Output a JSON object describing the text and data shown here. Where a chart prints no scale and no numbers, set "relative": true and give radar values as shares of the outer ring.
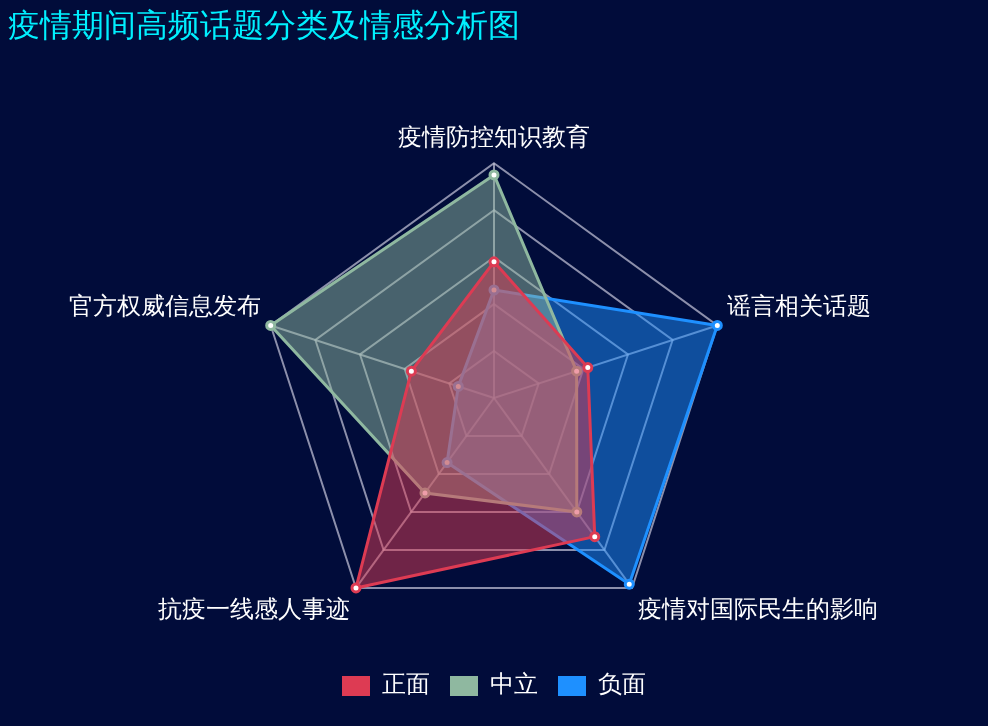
{
  "chart_data": {
    "type": "radar",
    "title": "疫情期间高频话题分类及情感分析图",
    "relative": true,
    "legend": "bottom",
    "marker": "circle",
    "categories": [
      "疫情防控知识教育",
      "谣言相关话题",
      "疫情对国际民生的影响",
      "抗疫一线感人事迹",
      "官方权威信息发布"
    ],
    "series": [
      {
        "name": "正面",
        "color": "#dd3b53",
        "values": [
          0.58,
          0.42,
          0.73,
          1,
          0.37
        ]
      },
      {
        "name": "中立",
        "color": "#8fb8a0",
        "values": [
          0.95,
          0.37,
          0.6,
          0.5,
          1
        ]
      },
      {
        "name": "负面",
        "color": "#1e90ff",
        "values": [
          0.46,
          1,
          0.98,
          0.34,
          0.16
        ]
      }
    ]
  }
}
